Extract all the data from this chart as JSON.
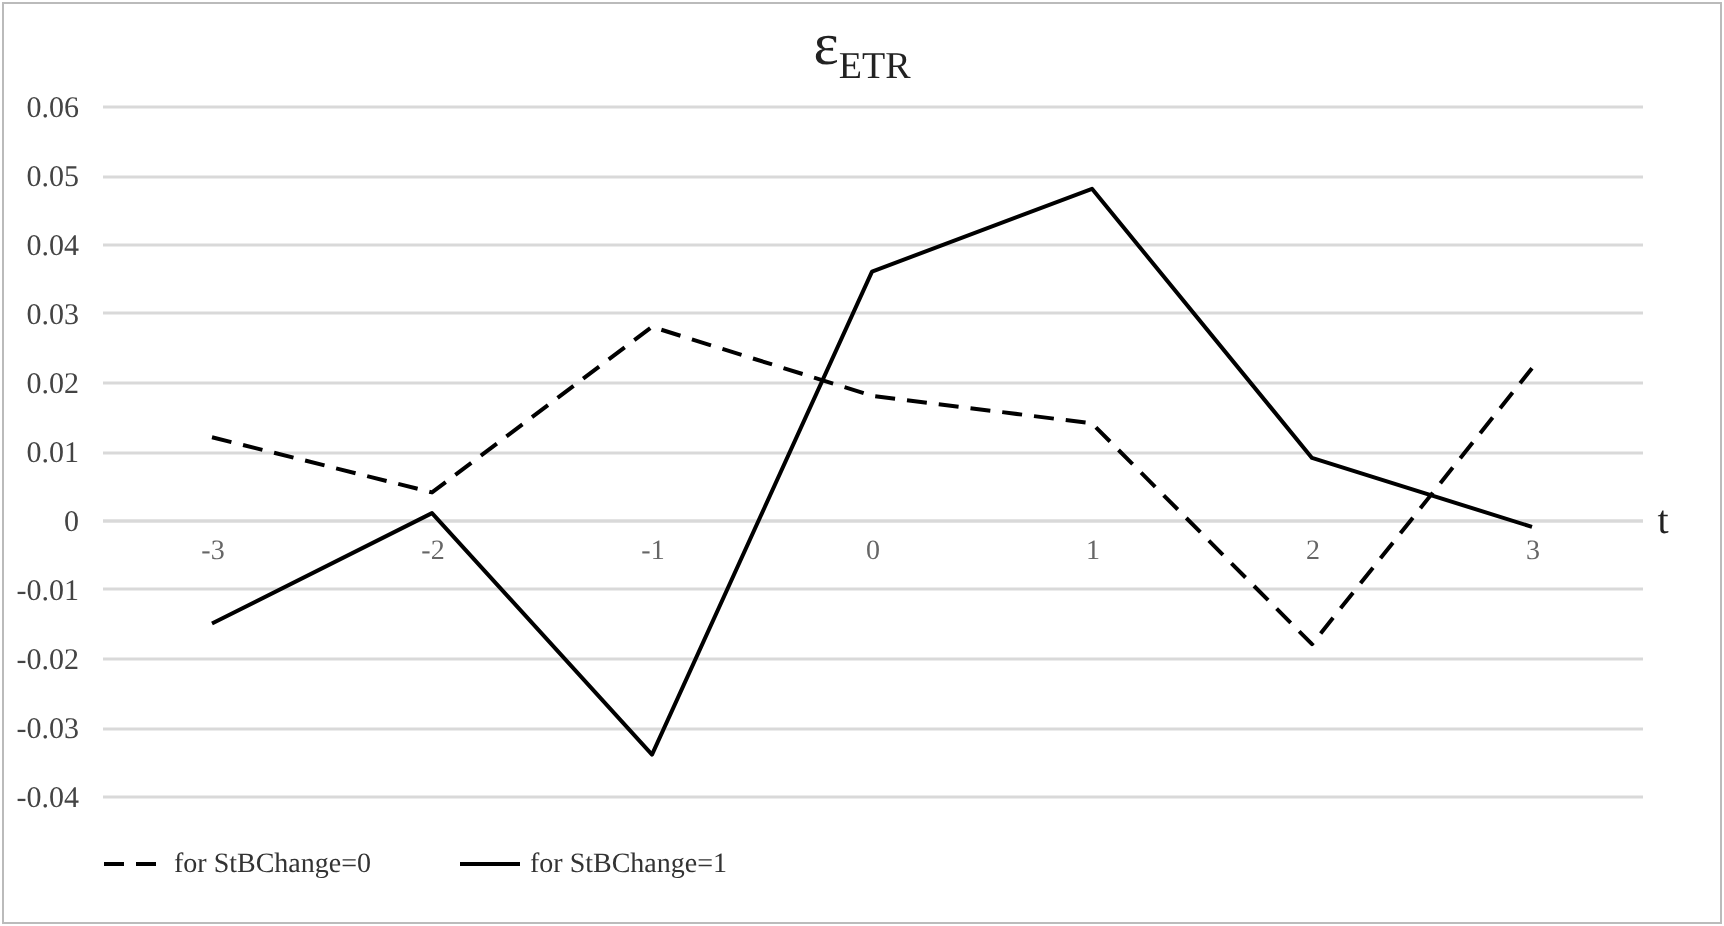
{
  "chart_data": {
    "type": "line",
    "title": "ε$_{ETR}$",
    "xlabel": "t",
    "categories": [
      "-3",
      "-2",
      "-1",
      "0",
      "1",
      "2",
      "3"
    ],
    "series": [
      {
        "name": "for StBChange=0",
        "color": "#000000",
        "line_style": "dashed",
        "values": [
          0.012,
          0.004,
          0.028,
          0.018,
          0.014,
          -0.018,
          0.022
        ]
      },
      {
        "name": "for StBChange=1",
        "color": "#000000",
        "line_style": "solid",
        "values": [
          -0.015,
          0.001,
          -0.034,
          0.036,
          0.048,
          0.009,
          -0.001
        ]
      }
    ],
    "ylim": [
      -0.04,
      0.06
    ],
    "yticks": [
      -0.04,
      -0.03,
      -0.02,
      -0.01,
      0,
      0.01,
      0.02,
      0.03,
      0.04,
      0.05,
      0.06
    ],
    "grid": "y",
    "legend": "bottom"
  }
}
